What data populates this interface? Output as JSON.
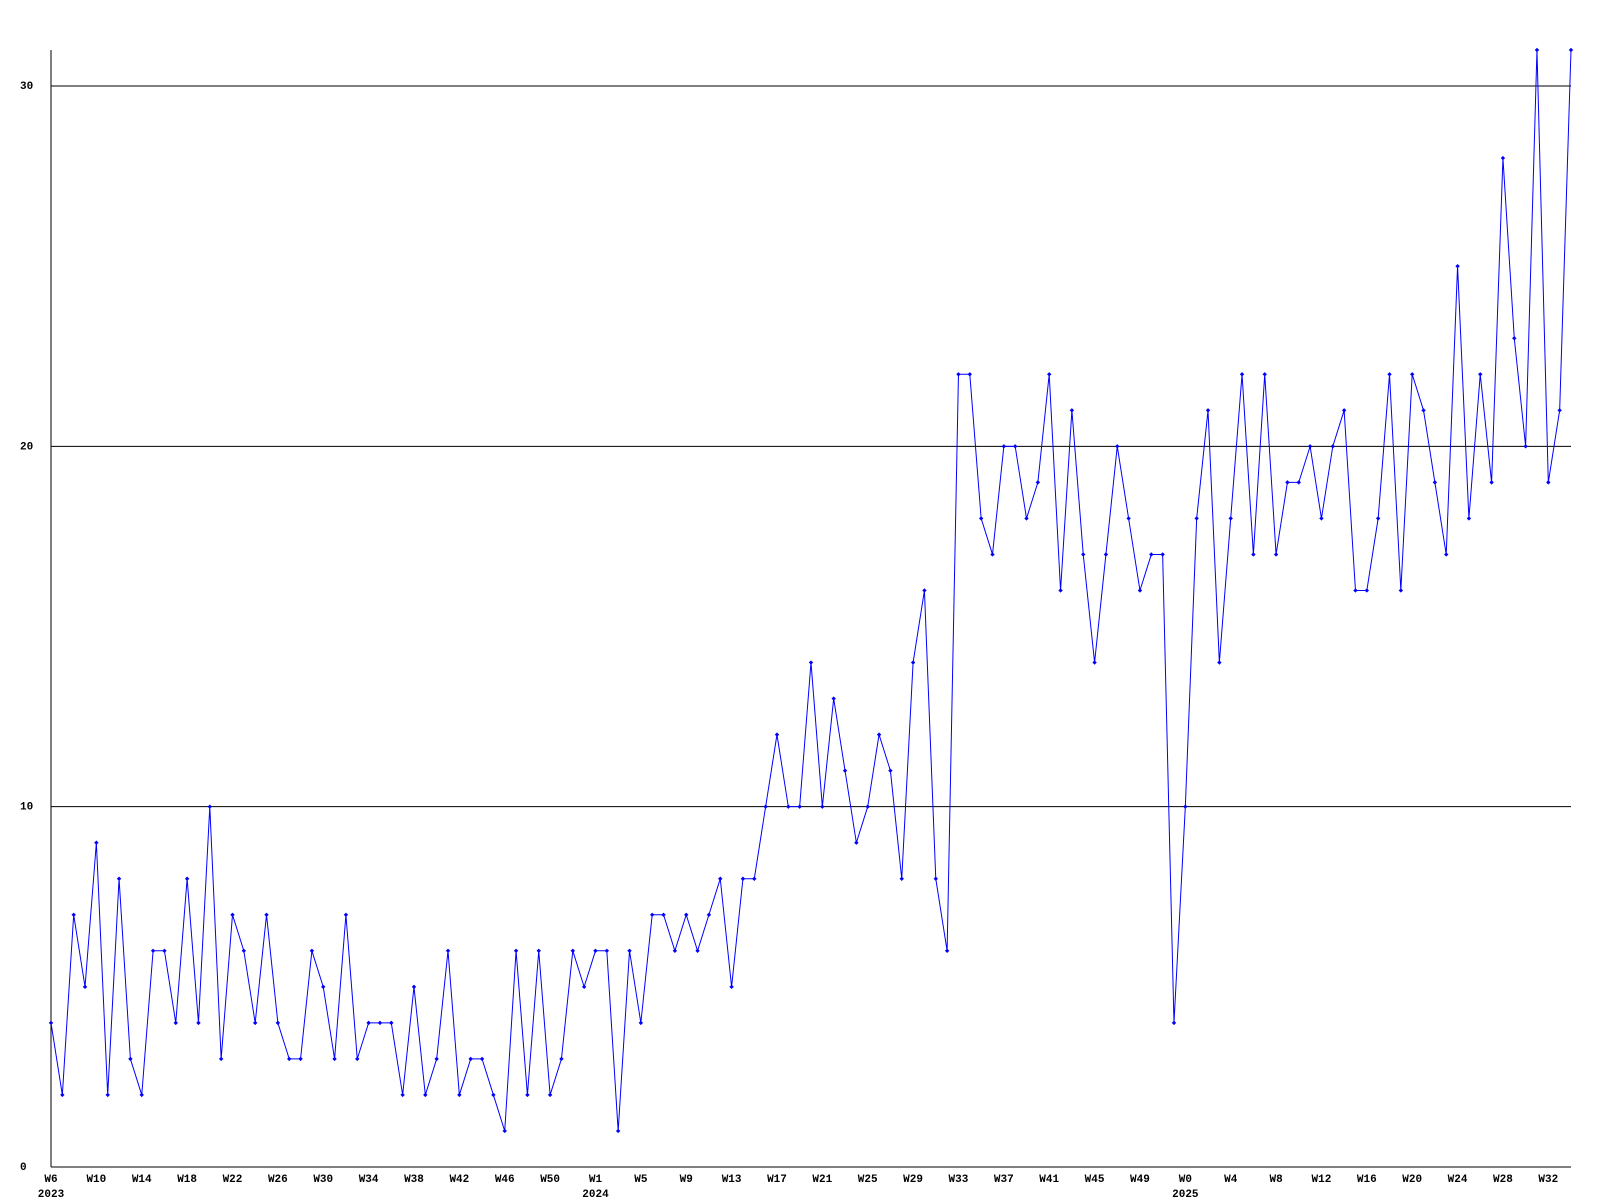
{
  "chart_data": {
    "type": "line",
    "categories": [
      "W6",
      null,
      null,
      null,
      "W10",
      null,
      null,
      null,
      "W14",
      null,
      null,
      null,
      "W18",
      null,
      null,
      null,
      "W22",
      null,
      null,
      null,
      "W26",
      null,
      null,
      null,
      "W30",
      null,
      null,
      null,
      "W34",
      null,
      null,
      null,
      "W38",
      null,
      null,
      null,
      "W42",
      null,
      null,
      null,
      "W46",
      null,
      null,
      null,
      "W50",
      null,
      null,
      null,
      "W1",
      null,
      null,
      null,
      "W5",
      null,
      null,
      null,
      "W9",
      null,
      null,
      null,
      "W13",
      null,
      null,
      null,
      "W17",
      null,
      null,
      null,
      "W21",
      null,
      null,
      null,
      "W25",
      null,
      null,
      null,
      "W29",
      null,
      null,
      null,
      "W33",
      null,
      null,
      null,
      "W37",
      null,
      null,
      null,
      "W41",
      null,
      null,
      null,
      "W45",
      null,
      null,
      null,
      "W49",
      null,
      null,
      null,
      "W0",
      null,
      null,
      null,
      "W4",
      null,
      null,
      null,
      "W8",
      null,
      null,
      null,
      "W12",
      null,
      null,
      null,
      "W16",
      null,
      null,
      null,
      "W20",
      null,
      null,
      null,
      "W24",
      null,
      null,
      null,
      "W28",
      null,
      null,
      null,
      "W32",
      null,
      null
    ],
    "year_labels": [
      "2023",
      null,
      null,
      null,
      null,
      null,
      null,
      null,
      null,
      null,
      null,
      null,
      null,
      null,
      null,
      null,
      null,
      null,
      null,
      null,
      null,
      null,
      null,
      null,
      null,
      null,
      null,
      null,
      null,
      null,
      null,
      null,
      null,
      null,
      null,
      null,
      null,
      null,
      null,
      null,
      null,
      null,
      null,
      null,
      null,
      null,
      null,
      null,
      "2024",
      null,
      null,
      null,
      null,
      null,
      null,
      null,
      null,
      null,
      null,
      null,
      null,
      null,
      null,
      null,
      null,
      null,
      null,
      null,
      null,
      null,
      null,
      null,
      null,
      null,
      null,
      null,
      null,
      null,
      null,
      null,
      null,
      null,
      null,
      null,
      null,
      null,
      null,
      null,
      null,
      null,
      null,
      null,
      null,
      null,
      null,
      null,
      null,
      null,
      null,
      null,
      "2025",
      null,
      null,
      null,
      null,
      null,
      null,
      null,
      null,
      null,
      null,
      null,
      null,
      null,
      null,
      null,
      null,
      null,
      null,
      null,
      null,
      null,
      null,
      null,
      null,
      null,
      null,
      null,
      null,
      null,
      null,
      null,
      null,
      null,
      null
    ],
    "series": [
      {
        "color": "#0000ff",
        "values": [
          4,
          2,
          7,
          5,
          9,
          2,
          8,
          3,
          2,
          6,
          6,
          4,
          8,
          4,
          10,
          3,
          7,
          6,
          4,
          7,
          4,
          3,
          3,
          6,
          5,
          3,
          7,
          3,
          4,
          4,
          4,
          2,
          5,
          2,
          3,
          6,
          2,
          3,
          3,
          2,
          1,
          6,
          2,
          6,
          2,
          3,
          6,
          5,
          6,
          6,
          1,
          6,
          4,
          7,
          7,
          6,
          7,
          6,
          7,
          8,
          5,
          8,
          8,
          10,
          12,
          10,
          10,
          14,
          10,
          13,
          11,
          9,
          10,
          12,
          11,
          8,
          14,
          16,
          8,
          6,
          22,
          22,
          18,
          17,
          20,
          20,
          18,
          19,
          22,
          16,
          21,
          17,
          14,
          17,
          20,
          18,
          16,
          17,
          17,
          4,
          10,
          18,
          21,
          14,
          18,
          22,
          17,
          22,
          17,
          19,
          19,
          20,
          18,
          20,
          21,
          16,
          16,
          18,
          22,
          16,
          22,
          21,
          19,
          17,
          25,
          18,
          22,
          19,
          28,
          23,
          20,
          31,
          19,
          21,
          31
        ]
      }
    ],
    "ylim": [
      0,
      31
    ],
    "yticks": [
      0,
      10,
      20,
      30
    ],
    "grid": true
  }
}
